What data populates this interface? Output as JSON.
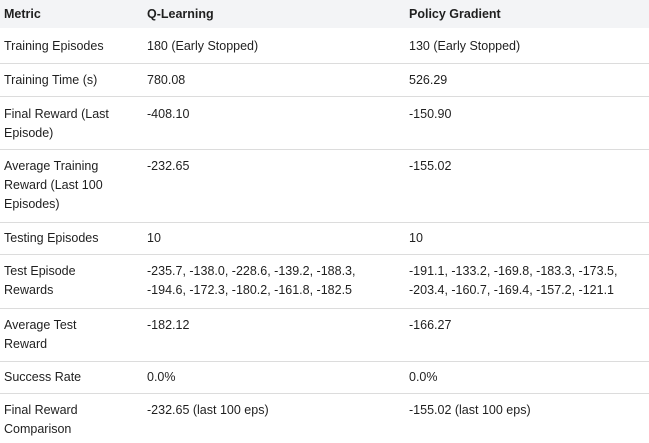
{
  "headers": [
    "Metric",
    "Q-Learning",
    "Policy Gradient"
  ],
  "rows": [
    {
      "metric": [
        "Training Episodes"
      ],
      "q": [
        "180 (Early Stopped)"
      ],
      "pg": [
        "130 (Early Stopped)"
      ]
    },
    {
      "metric": [
        "Training Time (s)"
      ],
      "q": [
        "780.08"
      ],
      "pg": [
        "526.29"
      ]
    },
    {
      "metric": [
        "Final Reward (Last",
        "Episode)"
      ],
      "q": [
        "-408.10"
      ],
      "pg": [
        "-150.90"
      ]
    },
    {
      "metric": [
        "Average Training",
        "Reward (Last 100",
        "Episodes)"
      ],
      "q": [
        "-232.65"
      ],
      "pg": [
        "-155.02"
      ]
    },
    {
      "metric": [
        "Testing Episodes"
      ],
      "q": [
        "10"
      ],
      "pg": [
        "10"
      ]
    },
    {
      "metric": [
        "Test Episode",
        "Rewards"
      ],
      "q": [
        "-235.7, -138.0, -228.6, -139.2, -188.3,",
        "-194.6, -172.3, -180.2, -161.8, -182.5"
      ],
      "pg": [
        "-191.1, -133.2, -169.8, -183.3, -173.5,",
        "-203.4, -160.7, -169.4, -157.2, -121.1"
      ]
    },
    {
      "metric": [
        "Average Test",
        "Reward"
      ],
      "q": [
        "-182.12"
      ],
      "pg": [
        "-166.27"
      ]
    },
    {
      "metric": [
        "Success Rate"
      ],
      "q": [
        "0.0%"
      ],
      "pg": [
        "0.0%"
      ]
    },
    {
      "metric": [
        "Final Reward",
        "Comparison"
      ],
      "q": [
        "-232.65 (last 100 eps)"
      ],
      "pg": [
        "-155.02 (last 100 eps)"
      ]
    }
  ]
}
